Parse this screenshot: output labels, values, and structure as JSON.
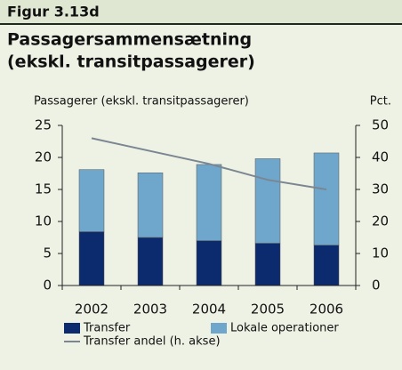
{
  "chart_data": {
    "type": "bar",
    "figure_label": "Figur 3.13d",
    "title": [
      "Passagersammensætning",
      "(ekskl. transitpassagerer)"
    ],
    "ylabel": "Passagerer (ekskl. transitpassagerer)",
    "y2label": "Pct.",
    "categories": [
      "2002",
      "2003",
      "2004",
      "2005",
      "2006"
    ],
    "stacked": true,
    "series": [
      {
        "name": "Transfer",
        "color": "#0c2a6e",
        "values": [
          8.4,
          7.5,
          7.0,
          6.6,
          6.3
        ]
      },
      {
        "name": "Lokale operationer",
        "color": "#6ea7cb",
        "values": [
          9.7,
          10.1,
          11.9,
          13.2,
          14.4
        ]
      },
      {
        "name": "Transfer andel (h. akse)",
        "color": "#7b8692",
        "type": "line",
        "axis": "y2",
        "values": [
          46,
          42,
          38,
          33,
          30
        ]
      }
    ],
    "ylim": [
      0,
      25
    ],
    "yticks": [
      0,
      5,
      10,
      15,
      20,
      25
    ],
    "y2lim": [
      0,
      50
    ],
    "y2ticks": [
      0,
      10,
      20,
      30,
      40,
      50
    ]
  }
}
